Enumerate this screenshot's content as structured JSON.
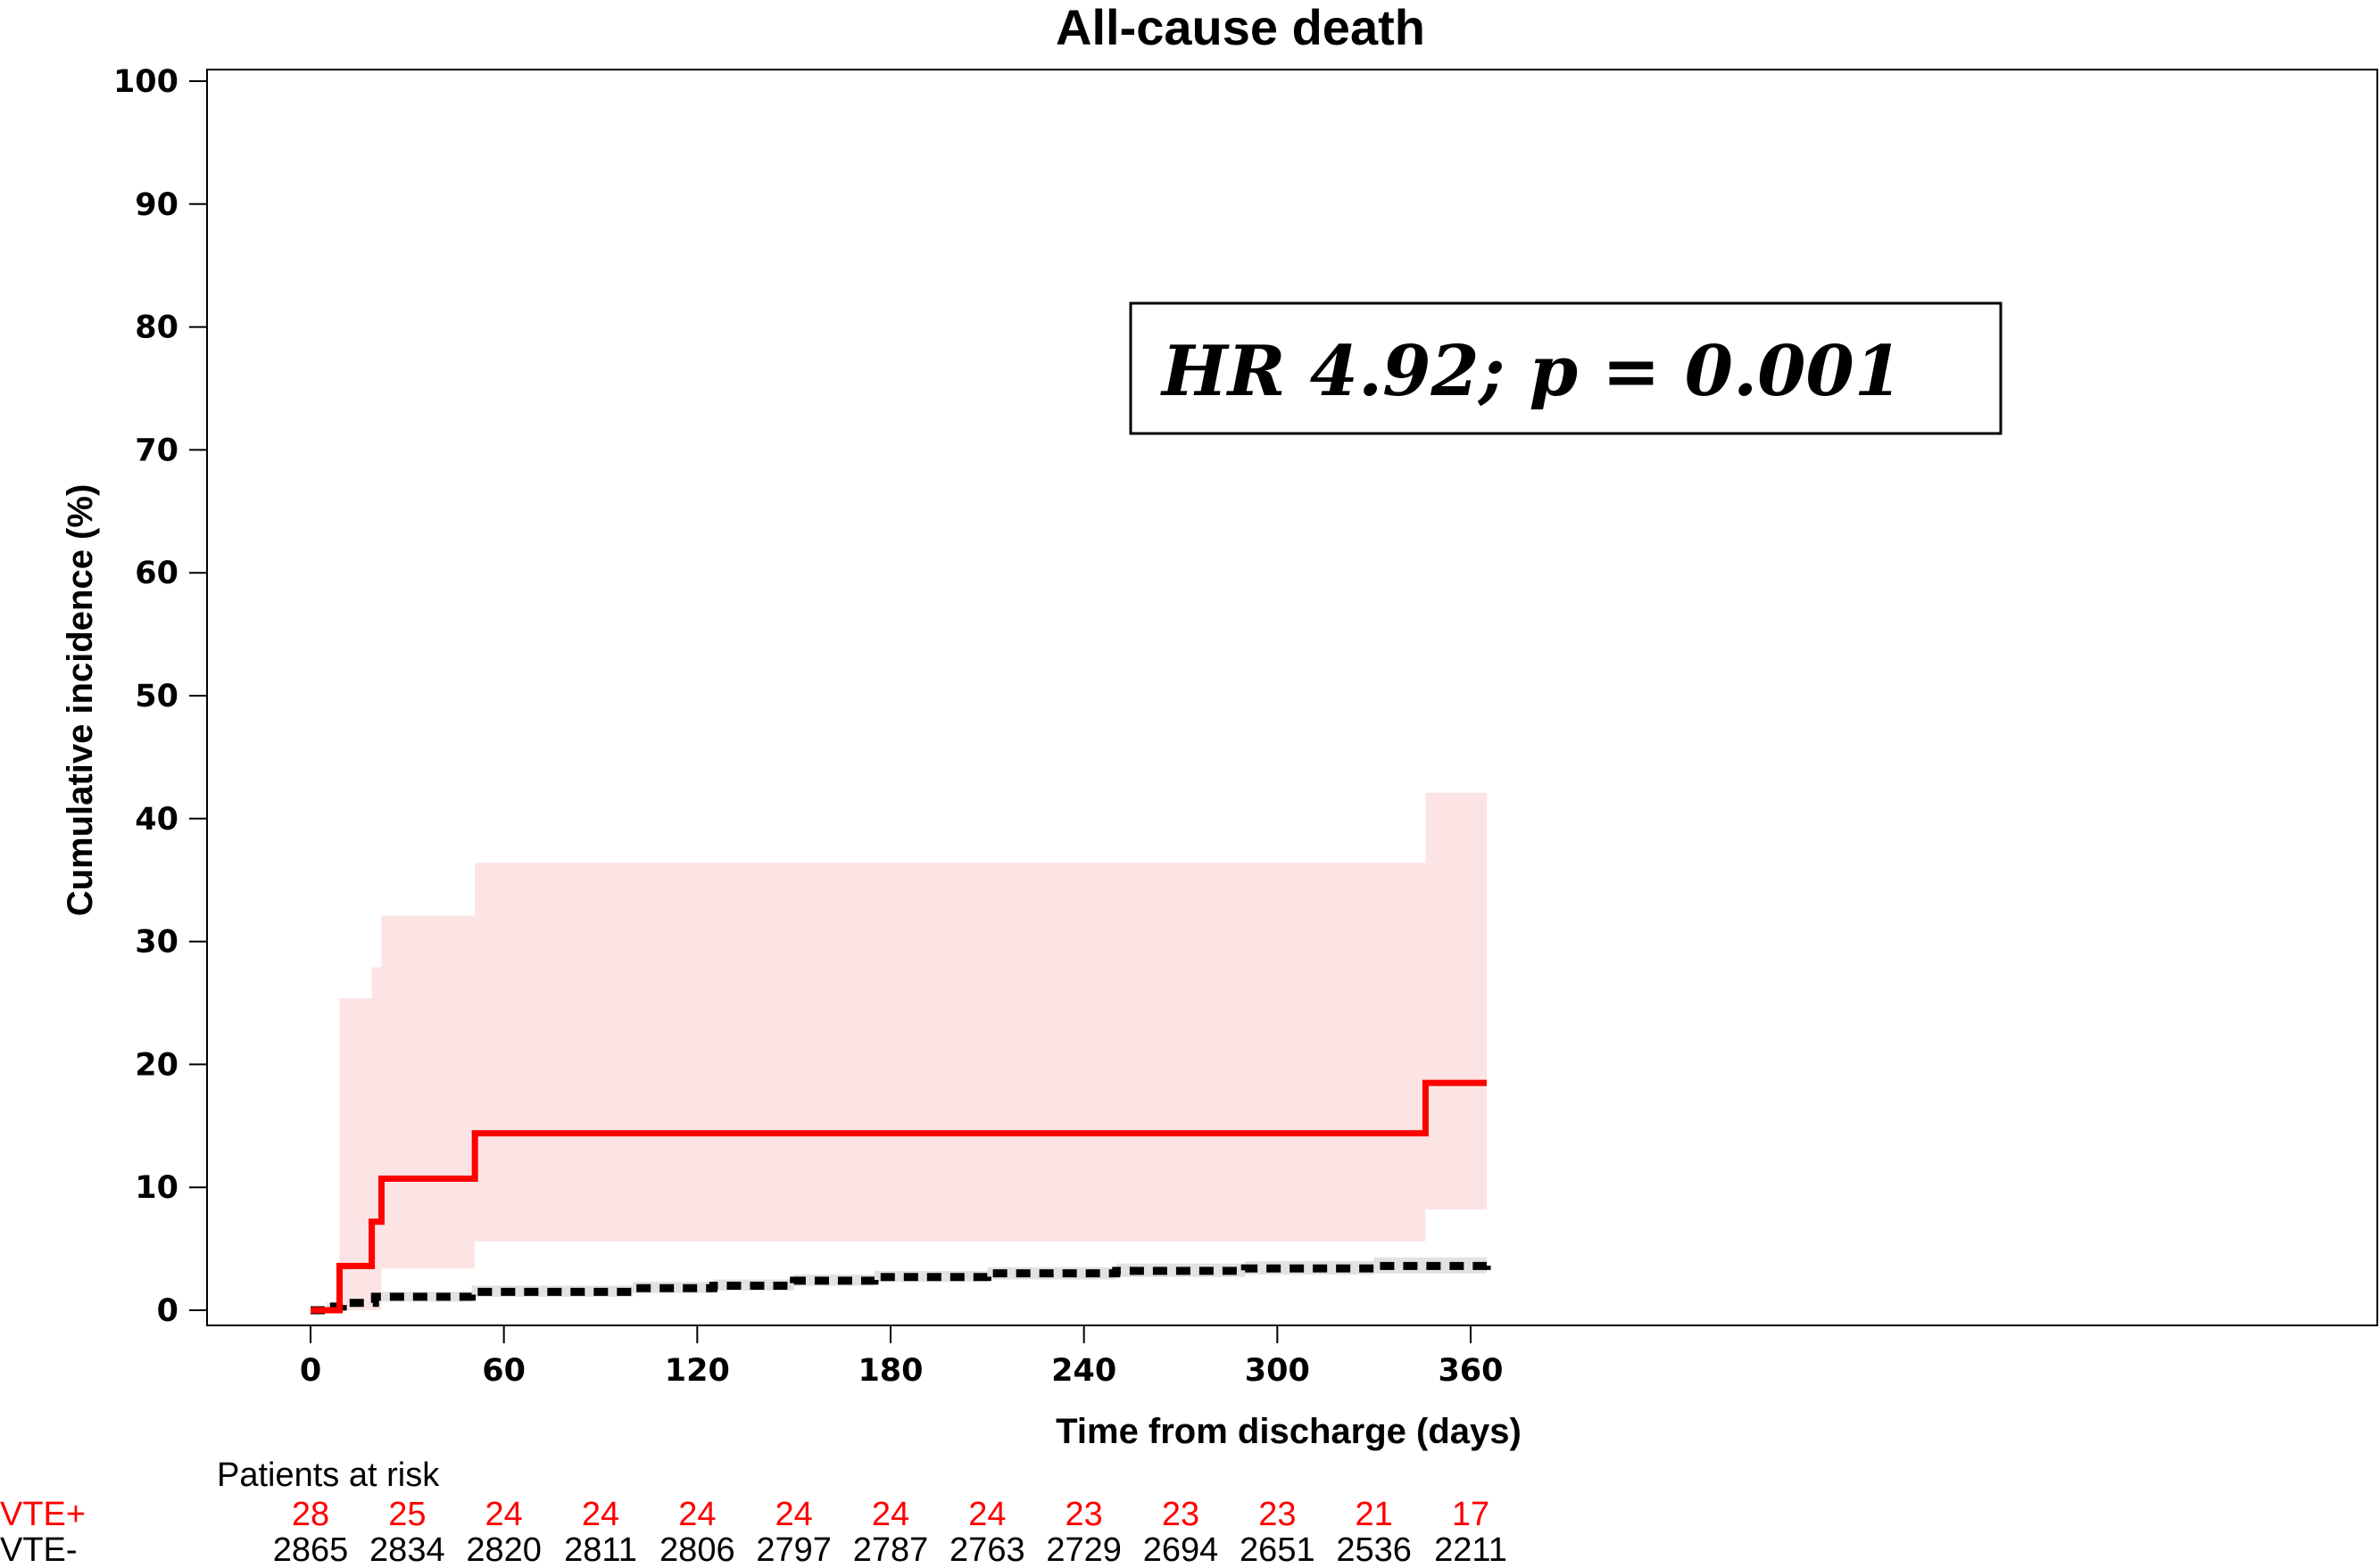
{
  "chart_data": {
    "type": "line",
    "title": "All-cause death",
    "xlabel": "Time from discharge (days)",
    "ylabel": "Cumulative incidence (%)",
    "xlim": [
      0,
      365
    ],
    "ylim": [
      0,
      100
    ],
    "xticks": [
      0,
      60,
      120,
      180,
      240,
      300,
      360
    ],
    "yticks": [
      0,
      10,
      20,
      30,
      40,
      50,
      60,
      70,
      80,
      90,
      100
    ],
    "grid": false,
    "annotation": "HR 4.92; p = 0.001",
    "colors": {
      "vte_pos": "#ff0000",
      "vte_pos_ci": "#fde4e4",
      "vte_neg": "#000000",
      "vte_neg_ci": "#e2e2e2"
    },
    "series": [
      {
        "key": "vte_pos",
        "style": "solid step",
        "x": [
          0,
          9,
          19,
          22,
          51,
          346,
          365
        ],
        "y": [
          0,
          3.6,
          7.2,
          10.7,
          14.4,
          18.5,
          18.5
        ],
        "ci_lower": [
          0,
          0,
          0,
          3.4,
          5.6,
          8.2,
          8.2
        ],
        "ci_upper": [
          0,
          25.4,
          27.9,
          32.1,
          36.4,
          42.1,
          42.1
        ]
      },
      {
        "key": "vte_neg",
        "style": "dashed step",
        "x": [
          0,
          5,
          10,
          20,
          50,
          100,
          125,
          150,
          175,
          210,
          250,
          290,
          330,
          365
        ],
        "y": [
          0,
          0.3,
          0.6,
          1.1,
          1.5,
          1.8,
          2.0,
          2.4,
          2.7,
          3.0,
          3.2,
          3.4,
          3.6,
          3.7
        ],
        "ci_lower": [
          0,
          0,
          0.2,
          0.7,
          1.1,
          1.4,
          1.6,
          2.0,
          2.3,
          2.5,
          2.7,
          2.9,
          3.0,
          3.1
        ],
        "ci_upper": [
          0,
          0.6,
          1.0,
          1.5,
          2.0,
          2.3,
          2.5,
          2.9,
          3.2,
          3.5,
          3.8,
          4.0,
          4.3,
          4.5
        ]
      }
    ],
    "risk_table": {
      "title": "Patients at risk",
      "times": [
        0,
        30,
        60,
        90,
        120,
        150,
        180,
        210,
        240,
        270,
        300,
        330,
        360
      ],
      "rows": [
        {
          "label": "VTE+",
          "color": "#ff0000",
          "values": [
            "28",
            "25",
            "24",
            "24",
            "24",
            "24",
            "24",
            "24",
            "23",
            "23",
            "23",
            "21",
            "17"
          ]
        },
        {
          "label": "VTE-",
          "color": "#000000",
          "values": [
            "2865",
            "2834",
            "2820",
            "2811",
            "2806",
            "2797",
            "2787",
            "2763",
            "2729",
            "2694",
            "2651",
            "2536",
            "2211"
          ]
        }
      ]
    }
  }
}
